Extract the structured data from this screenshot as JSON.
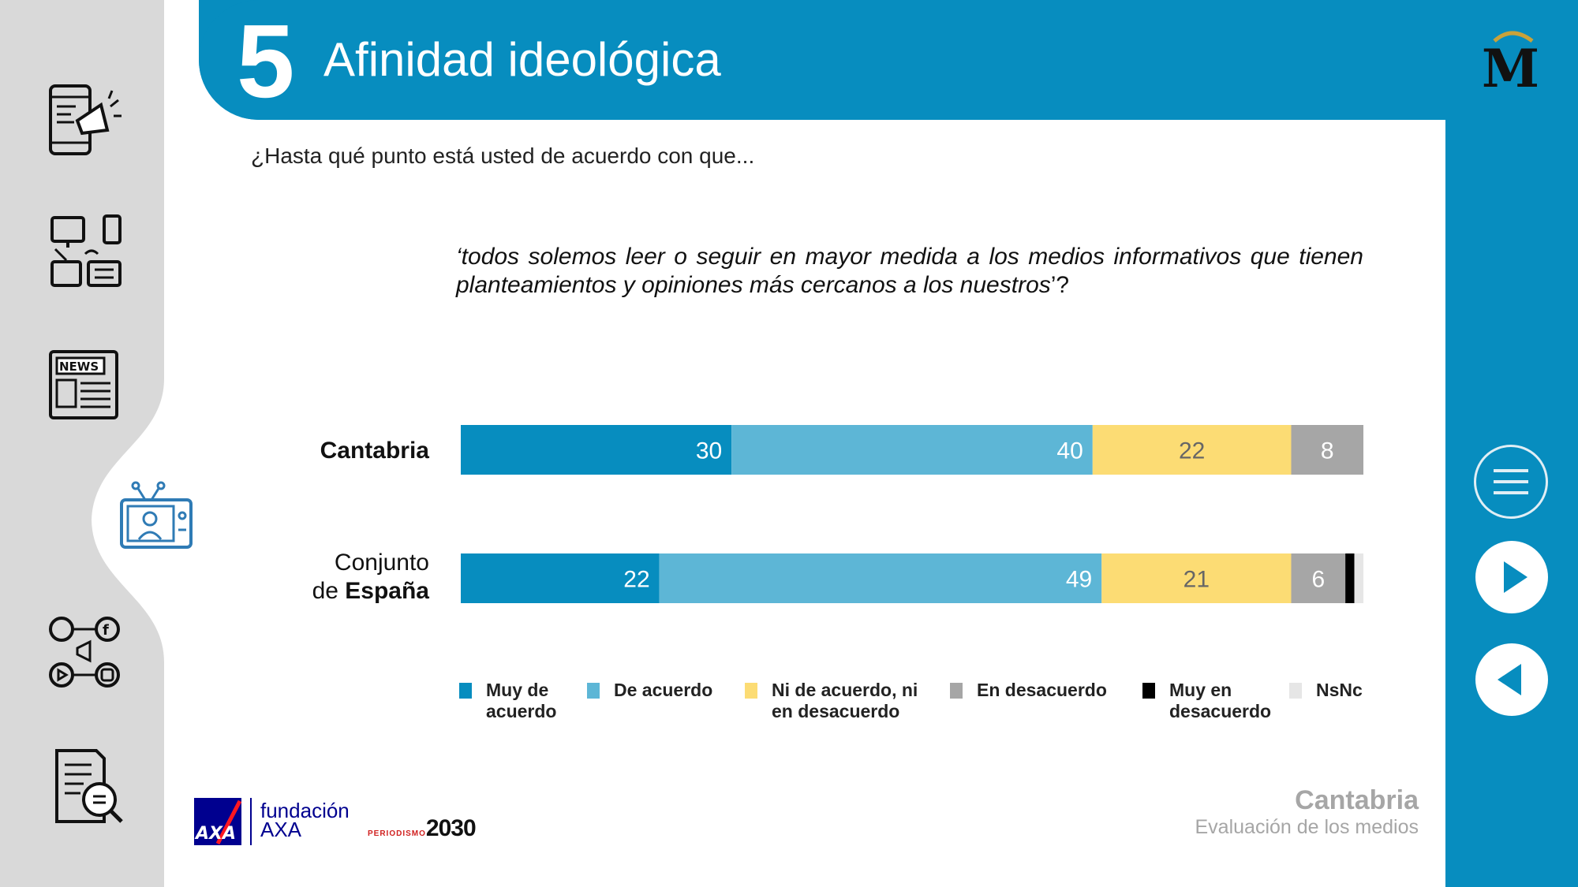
{
  "header": {
    "number": "5",
    "title": "Afinidad ideológica"
  },
  "question": "¿Hasta qué punto está usted de acuerdo con que...",
  "statement": {
    "open_quote": "‘",
    "text": "todos solemos leer o seguir en mayor medida a los medios informativos que tienen planteamientos y opiniones más cercanos a los nuestros",
    "close": "’?"
  },
  "rows": {
    "cantabria": {
      "label": "Cantabria"
    },
    "espana": {
      "label_line1": "Conjunto",
      "label_prefix": "de ",
      "label_bold": "España"
    }
  },
  "colors": {
    "header_blue": "#078dbf",
    "muy_de_acuerdo": "#078dbf",
    "de_acuerdo": "#5db6d6",
    "ni": "#fcdc74",
    "en_desacuerdo": "#a6a6a6",
    "muy_en_desacuerdo": "#000000",
    "nsnc": "#e6e6e6"
  },
  "chart_data": {
    "type": "bar",
    "orientation": "horizontal",
    "stacked": true,
    "categories": [
      "Cantabria",
      "Conjunto de España"
    ],
    "series": [
      {
        "name": "Muy de acuerdo",
        "values": [
          30,
          22
        ],
        "labels": [
          "30",
          "22"
        ]
      },
      {
        "name": "De acuerdo",
        "values": [
          40,
          49
        ],
        "labels": [
          "40",
          "49"
        ]
      },
      {
        "name": "Ni de acuerdo, ni en desacuerdo",
        "values": [
          22,
          21
        ],
        "labels": [
          "22",
          "21"
        ]
      },
      {
        "name": "En desacuerdo",
        "values": [
          8,
          6
        ],
        "labels": [
          "8",
          "6"
        ]
      },
      {
        "name": "Muy en desacuerdo",
        "values": [
          0,
          1
        ],
        "labels": [
          "",
          ""
        ]
      },
      {
        "name": "NsNc",
        "values": [
          0,
          1
        ],
        "labels": [
          "",
          ""
        ]
      }
    ],
    "xlim": [
      0,
      100
    ],
    "legend_position": "bottom",
    "grid": false
  },
  "legend": [
    {
      "line1": "Muy de",
      "line2": "acuerdo"
    },
    {
      "line1": "De acuerdo",
      "line2": ""
    },
    {
      "line1": "Ni de acuerdo, ni",
      "line2": "en desacuerdo"
    },
    {
      "line1": "En desacuerdo",
      "line2": ""
    },
    {
      "line1": "Muy en",
      "line2": "desacuerdo"
    },
    {
      "line1": "NsNc",
      "line2": ""
    }
  ],
  "footer": {
    "region": "Cantabria",
    "subtitle": "Evaluación de los medios"
  },
  "logos": {
    "axa": "AXA",
    "fundacion_line1": "fundación",
    "fundacion_line2": "AXA",
    "periodismo_small": "PERIODISMO",
    "periodismo_big": "2030",
    "brand_m": "M"
  },
  "icons": [
    "phone-megaphone-icon",
    "devices-icon",
    "newspaper-icon",
    "tv-presenter-icon",
    "social-media-icon",
    "document-search-icon",
    "menu-icon",
    "next-icon",
    "previous-icon"
  ]
}
